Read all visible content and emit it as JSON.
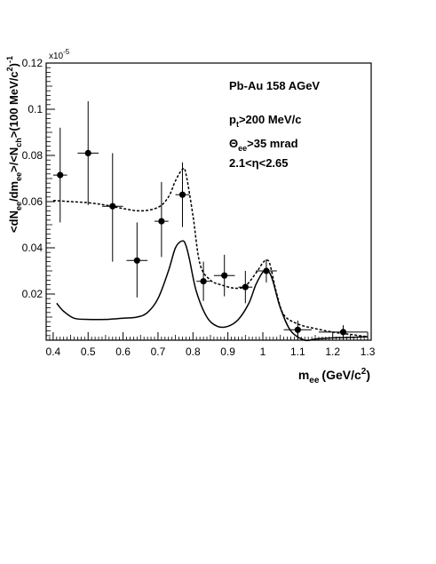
{
  "chart_data": {
    "type": "scatter",
    "x_label": {
      "main": "m",
      "sub": "ee",
      "unit": "(GeV/c",
      "sup": "2",
      "close": ")"
    },
    "y_label": {
      "p1": "<dN",
      "s1": "ee",
      "p2": "/dm",
      "s2": "ee",
      "p3": ">/<N",
      "s3": "ch",
      "p4": ">(100 MeV/c",
      "sup1": "2",
      "p5": ")",
      "sup2": "-1"
    },
    "y_multiplier": {
      "base": "x10",
      "exp": "-5"
    },
    "xlim": [
      0.38,
      1.31
    ],
    "ylim": [
      0,
      0.12
    ],
    "x_ticks": [
      0.4,
      0.5,
      0.6,
      0.7,
      0.8,
      0.9,
      1.0,
      1.1,
      1.2,
      1.3
    ],
    "x_tick_labels": [
      "0.4",
      "0.5",
      "0.6",
      "0.7",
      "0.8",
      "0.9",
      "1",
      "1.1",
      "1.2",
      "1.3"
    ],
    "y_ticks": [
      0.02,
      0.04,
      0.06,
      0.08,
      0.1,
      0.12
    ],
    "y_tick_labels": [
      "0.02",
      "0.04",
      "0.06",
      "0.08",
      "0.1",
      "0.12"
    ],
    "annotations": {
      "system": "Pb-Au 158 AGeV",
      "pt_cut": {
        "main": "p",
        "sub": "t",
        "rest": ">200 MeV/c"
      },
      "theta_cut": {
        "main": "Θ",
        "sub": "ee",
        "rest": ">35 mrad"
      },
      "eta_cut": "2.1<η<2.65"
    },
    "data_points": [
      {
        "x": 0.42,
        "y": 0.0715,
        "xerr": 0.02,
        "yerr_up": 0.0205,
        "yerr_down": 0.0205
      },
      {
        "x": 0.5,
        "y": 0.081,
        "xerr": 0.03,
        "yerr_up": 0.0225,
        "yerr_down": 0.0225
      },
      {
        "x": 0.57,
        "y": 0.058,
        "xerr": 0.03,
        "yerr_up": 0.023,
        "yerr_down": 0.024
      },
      {
        "x": 0.64,
        "y": 0.0345,
        "xerr": 0.03,
        "yerr_up": 0.0165,
        "yerr_down": 0.016
      },
      {
        "x": 0.71,
        "y": 0.0515,
        "xerr": 0.02,
        "yerr_up": 0.017,
        "yerr_down": 0.0155
      },
      {
        "x": 0.77,
        "y": 0.063,
        "xerr": 0.02,
        "yerr_up": 0.014,
        "yerr_down": 0.014
      },
      {
        "x": 0.83,
        "y": 0.0255,
        "xerr": 0.02,
        "yerr_up": 0.0085,
        "yerr_down": 0.0085
      },
      {
        "x": 0.89,
        "y": 0.028,
        "xerr": 0.03,
        "yerr_up": 0.009,
        "yerr_down": 0.009
      },
      {
        "x": 0.95,
        "y": 0.023,
        "xerr": 0.02,
        "yerr_up": 0.007,
        "yerr_down": 0.007
      },
      {
        "x": 1.01,
        "y": 0.03,
        "xerr": 0.03,
        "yerr_up": 0.005,
        "yerr_down": 0.005
      },
      {
        "x": 1.1,
        "y": 0.0045,
        "xerr": 0.04,
        "yerr_up": 0.004,
        "yerr_down": 0.004
      },
      {
        "x": 1.23,
        "y": 0.0035,
        "xerr": 0.07,
        "yerr_up": 0.003,
        "yerr_down": 0.003
      }
    ],
    "series": [
      {
        "style": "dashed",
        "x": [
          0.4,
          0.45,
          0.5,
          0.55,
          0.6,
          0.65,
          0.7,
          0.73,
          0.75,
          0.77,
          0.78,
          0.8,
          0.82,
          0.85,
          0.88,
          0.92,
          0.95,
          0.98,
          1.0,
          1.01,
          1.02,
          1.04,
          1.06,
          1.1,
          1.15,
          1.2,
          1.25,
          1.3
        ],
        "y": [
          0.0605,
          0.06,
          0.0595,
          0.0585,
          0.057,
          0.056,
          0.0575,
          0.062,
          0.069,
          0.074,
          0.072,
          0.054,
          0.033,
          0.026,
          0.024,
          0.0225,
          0.0235,
          0.029,
          0.0335,
          0.0345,
          0.033,
          0.02,
          0.011,
          0.007,
          0.005,
          0.0035,
          0.0025,
          0.0015
        ]
      },
      {
        "style": "solid",
        "x": [
          0.41,
          0.43,
          0.46,
          0.5,
          0.55,
          0.6,
          0.64,
          0.67,
          0.7,
          0.73,
          0.75,
          0.77,
          0.78,
          0.79,
          0.81,
          0.84,
          0.87,
          0.9,
          0.93,
          0.96,
          0.98,
          1.0,
          1.01,
          1.02,
          1.03,
          1.05,
          1.08,
          1.12,
          1.15,
          1.2,
          1.25,
          1.3
        ],
        "y": [
          0.016,
          0.0125,
          0.0095,
          0.009,
          0.009,
          0.0095,
          0.01,
          0.012,
          0.018,
          0.03,
          0.04,
          0.043,
          0.041,
          0.035,
          0.021,
          0.01,
          0.006,
          0.006,
          0.009,
          0.016,
          0.024,
          0.0295,
          0.03,
          0.029,
          0.025,
          0.014,
          0.004,
          -0.001,
          0.0005,
          0.001,
          0.0012,
          0.0015
        ]
      }
    ]
  }
}
